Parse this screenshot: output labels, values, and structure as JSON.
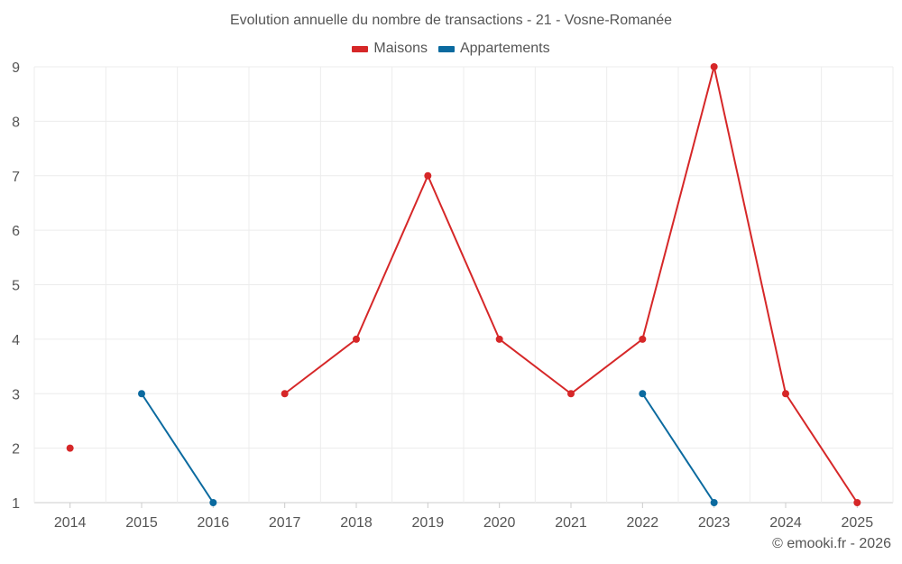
{
  "chart_data": {
    "type": "line",
    "title": "Evolution annuelle du nombre de transactions - 21 - Vosne-Romanée",
    "categories": [
      "2014",
      "2015",
      "2016",
      "2017",
      "2018",
      "2019",
      "2020",
      "2021",
      "2022",
      "2023",
      "2024",
      "2025"
    ],
    "ylim": [
      1,
      9
    ],
    "yticks": [
      1,
      2,
      3,
      4,
      5,
      6,
      7,
      8,
      9
    ],
    "grid": true,
    "legend_position": "top-center",
    "series": [
      {
        "name": "Maisons",
        "color": "#d62728",
        "values": [
          2,
          null,
          null,
          3,
          4,
          7,
          4,
          3,
          4,
          9,
          3,
          1
        ]
      },
      {
        "name": "Appartements",
        "color": "#0b6a9f",
        "values": [
          null,
          3,
          1,
          null,
          null,
          null,
          null,
          null,
          3,
          1,
          null,
          null
        ]
      }
    ],
    "credit": "© emooki.fr - 2026"
  }
}
